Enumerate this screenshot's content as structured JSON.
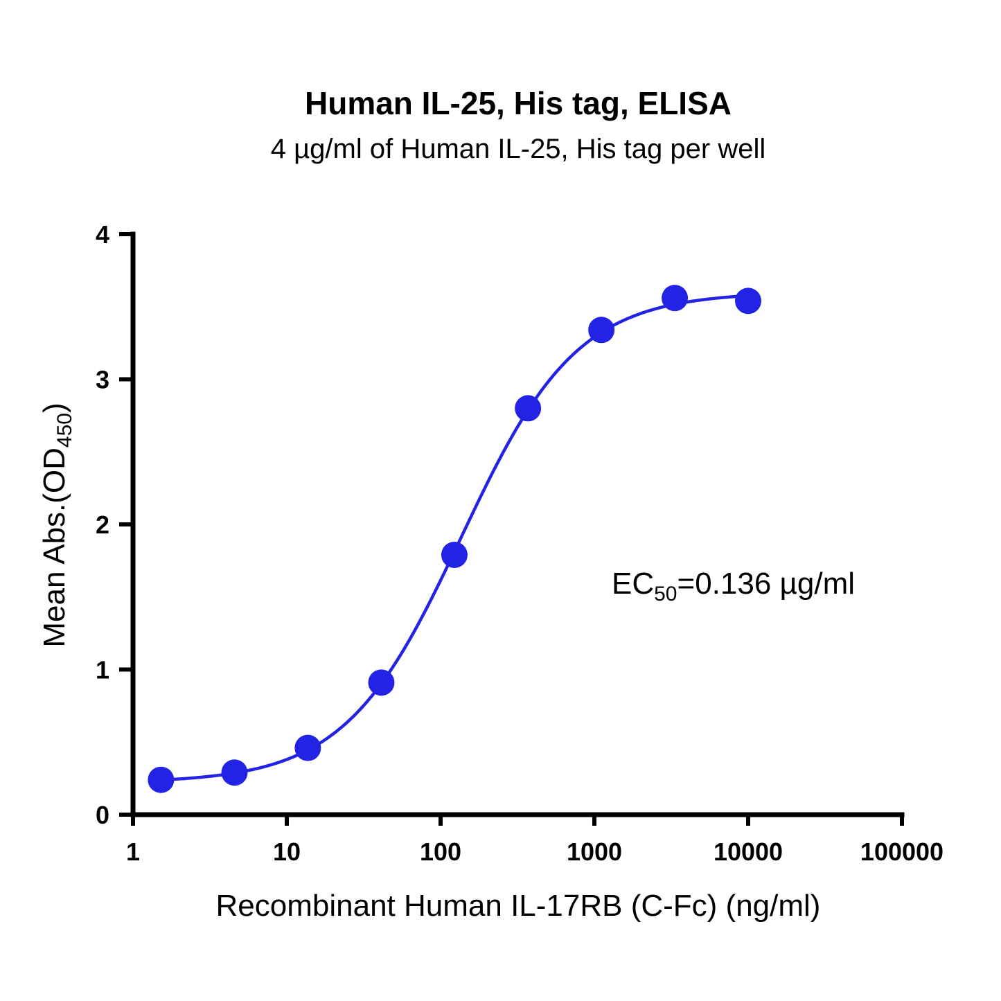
{
  "chart_data": {
    "type": "scatter",
    "title": "Human IL-25, His tag, ELISA",
    "subtitle": "4 µg/ml of Human IL-25, His tag per well",
    "xlabel": "Recombinant Human IL-17RB (C-Fc) (ng/ml)",
    "ylabel": {
      "main": "Mean Abs.(OD",
      "subscript": "450",
      "suffix": ")"
    },
    "xscale": "log",
    "xlim": [
      1,
      100000
    ],
    "ylim": [
      0,
      4
    ],
    "x_ticks": [
      "1",
      "10",
      "100",
      "1000",
      "10000",
      "100000"
    ],
    "y_ticks": [
      "0",
      "1",
      "2",
      "3",
      "4"
    ],
    "grid": false,
    "colors": {
      "series": "#2323e6",
      "axis": "#000000"
    },
    "series": [
      {
        "x": [
          1.52,
          4.57,
          13.7,
          41.2,
          123,
          370,
          1111,
          3333,
          10000
        ],
        "y": [
          0.24,
          0.29,
          0.46,
          0.91,
          1.79,
          2.8,
          3.34,
          3.56,
          3.54
        ]
      }
    ],
    "fit": {
      "type": "4PL",
      "bottom": 0.22,
      "top": 3.6,
      "ec50": 136,
      "hill": 1.15
    },
    "annotation": {
      "prefix": "EC",
      "subscript": "50",
      "suffix": "=0.136 µg/ml"
    }
  }
}
